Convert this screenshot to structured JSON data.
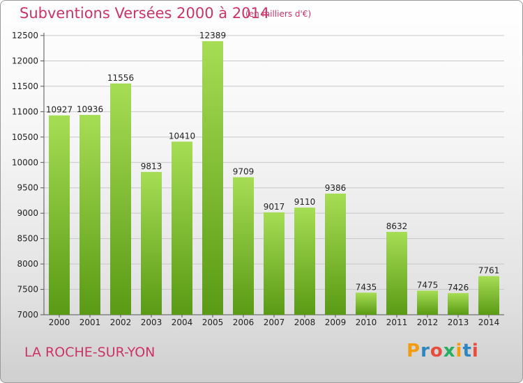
{
  "title": "Subventions Versées 2000 à 2014",
  "unit_note": "(en milliers d'€)",
  "city": "LA ROCHE-SUR-YON",
  "brand": {
    "letters": [
      "P",
      "r",
      "o",
      "x",
      "i",
      "t",
      "i"
    ],
    "colors": [
      "#f39c12",
      "#2e86c1",
      "#e74c3c",
      "#27ae60",
      "#f39c12",
      "#2e86c1",
      "#e74c3c"
    ]
  },
  "colors": {
    "bar_light": "#a6dd55",
    "bar_dark": "#5a9a14",
    "grid": "#c8c8c8",
    "title": "#cc3366"
  },
  "chart_data": {
    "type": "bar",
    "title": "Subventions Versées 2000 à 2014",
    "subtitle": "(en milliers d'€)",
    "categories": [
      "2000",
      "2001",
      "2002",
      "2003",
      "2004",
      "2005",
      "2006",
      "2007",
      "2008",
      "2009",
      "2010",
      "2011",
      "2012",
      "2013",
      "2014"
    ],
    "values": [
      10927,
      10936,
      11556,
      9813,
      10410,
      12389,
      9709,
      9017,
      9110,
      9386,
      7435,
      8632,
      7475,
      7426,
      7761
    ],
    "ylim": [
      7000,
      12500
    ],
    "yticks": [
      7000,
      7500,
      8000,
      8500,
      9000,
      9500,
      10000,
      10500,
      11000,
      11500,
      12000,
      12500
    ],
    "grid": true,
    "xlabel": "",
    "ylabel": ""
  }
}
